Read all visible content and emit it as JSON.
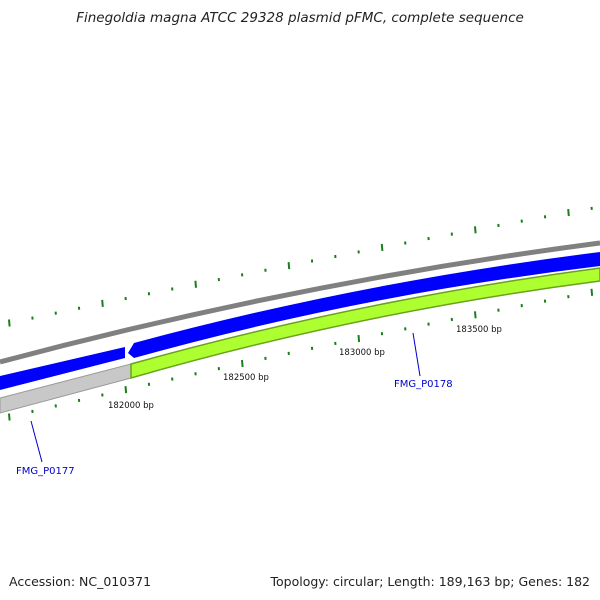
{
  "title": "Finegoldia magna ATCC 29328 plasmid pFMC, complete sequence",
  "footer": {
    "accession": "Accession: NC_010371",
    "summary": "Topology: circular; Length: 189,163 bp; Genes: 182"
  },
  "ruler_labels": [
    "182000 bp",
    "182500 bp",
    "183000 bp",
    "183500 bp"
  ],
  "genes": [
    {
      "label": "FMG_P0177",
      "strand": "reverse",
      "color": "#0000ff"
    },
    {
      "label": "FMG_P0178",
      "strand": "reverse",
      "color": "#0000ff"
    }
  ],
  "colors": {
    "backbone": "#808080",
    "forward_gene": "#0000ff",
    "cds_feature": "#adff2f",
    "cds_feature_dark": "#6aa121",
    "other_feature": "#c8c8c8",
    "tick": "#1a7f1a",
    "gene_label": "#0000cc"
  }
}
